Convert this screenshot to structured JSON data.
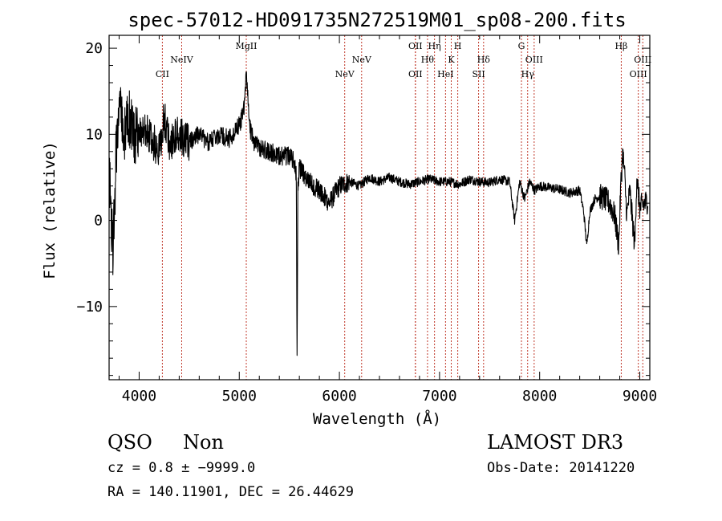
{
  "chart_data": {
    "type": "line",
    "title": "spec-57012-HD091735N272519M01_sp08-200.fits",
    "xlabel": "Wavelength (Å)",
    "ylabel": "Flux (relative)",
    "xlim": [
      3700,
      9100
    ],
    "ylim": [
      -18.5,
      21.5
    ],
    "xticks": [
      4000,
      5000,
      6000,
      7000,
      8000,
      9000
    ],
    "yticks": [
      -10,
      0,
      10,
      20
    ],
    "grid": false,
    "legend": "none",
    "spectrum_anchors": {
      "x": [
        3700,
        3740,
        3770,
        3800,
        3850,
        3900,
        3950,
        4000,
        4100,
        4200,
        4250,
        4300,
        4400,
        4500,
        4600,
        4700,
        4800,
        4900,
        5000,
        5050,
        5070,
        5085,
        5100,
        5150,
        5200,
        5300,
        5400,
        5500,
        5550,
        5570,
        5577,
        5585,
        5600,
        5700,
        5800,
        5900,
        6000,
        6100,
        6200,
        6300,
        6400,
        6500,
        6600,
        6700,
        6800,
        6900,
        7000,
        7100,
        7200,
        7300,
        7400,
        7500,
        7600,
        7700,
        7750,
        7800,
        7850,
        7900,
        7950,
        8000,
        8100,
        8200,
        8300,
        8400,
        8440,
        8470,
        8500,
        8550,
        8600,
        8650,
        8700,
        8750,
        8790,
        8810,
        8830,
        8850,
        8870,
        8900,
        8950,
        8970,
        9000,
        9050,
        9100
      ],
      "y": [
        6,
        -4,
        8,
        14,
        10,
        12,
        9,
        11,
        10,
        8,
        12,
        9,
        10,
        9,
        10,
        9,
        10,
        9.5,
        11,
        13,
        17,
        15,
        11,
        9,
        8.5,
        8,
        7.5,
        7.5,
        7,
        5,
        -17,
        4,
        6,
        4.5,
        3.5,
        2,
        4,
        4.5,
        4,
        5,
        4.5,
        5,
        4.5,
        4.2,
        4.5,
        4.8,
        4.5,
        4.5,
        4.2,
        4.8,
        4.5,
        4.4,
        4.8,
        4.5,
        0,
        4.5,
        2.5,
        4.5,
        3.5,
        4,
        3.8,
        3.6,
        3.2,
        3.5,
        1,
        -3,
        1,
        2.5,
        2.8,
        2.5,
        2,
        0.5,
        -3,
        4,
        8,
        5,
        0.5,
        3.5,
        -3,
        5,
        1.5,
        2,
        2.5
      ]
    },
    "lines": [
      {
        "name": "CII",
        "x": 4232,
        "row": "lower"
      },
      {
        "name": "NeIV",
        "x": 4425,
        "row": "middle"
      },
      {
        "name": "MgII",
        "x": 5070,
        "row": "top"
      },
      {
        "name": "NeV",
        "x": 6053,
        "row": "lower"
      },
      {
        "name": "NeV",
        "x": 6222,
        "row": "middle"
      },
      {
        "name": "OII",
        "x": 6759,
        "row": "top"
      },
      {
        "name": "OII",
        "x": 6759,
        "row": "lower"
      },
      {
        "name": "Hθ",
        "x": 6880,
        "row": "middle"
      },
      {
        "name": "Hη",
        "x": 6950,
        "row": "top"
      },
      {
        "name": "HeI",
        "x": 7060,
        "row": "lower"
      },
      {
        "name": "K",
        "x": 7117,
        "row": "middle"
      },
      {
        "name": "H",
        "x": 7182,
        "row": "top"
      },
      {
        "name": "SII",
        "x": 7390,
        "row": "lower"
      },
      {
        "name": "Hδ",
        "x": 7440,
        "row": "middle"
      },
      {
        "name": "G",
        "x": 7818,
        "row": "top"
      },
      {
        "name": "Hγ",
        "x": 7880,
        "row": "lower"
      },
      {
        "name": "OIII",
        "x": 7945,
        "row": "middle"
      },
      {
        "name": "Hβ",
        "x": 8815,
        "row": "top"
      },
      {
        "name": "OIII",
        "x": 8985,
        "row": "lower"
      },
      {
        "name": "OIII",
        "x": 9030,
        "row": "middle"
      }
    ]
  },
  "info": {
    "class": "QSO",
    "subclass": "Non",
    "cz": "cz = 0.8 ± −9999.0",
    "radec": "RA = 140.11901, DEC =  26.44629",
    "survey": "LAMOST DR3",
    "obsdate": "Obs-Date: 20141220"
  },
  "colors": {
    "axis": "#000000",
    "spectrum": "#000000",
    "line_marker": "#c0392b"
  }
}
